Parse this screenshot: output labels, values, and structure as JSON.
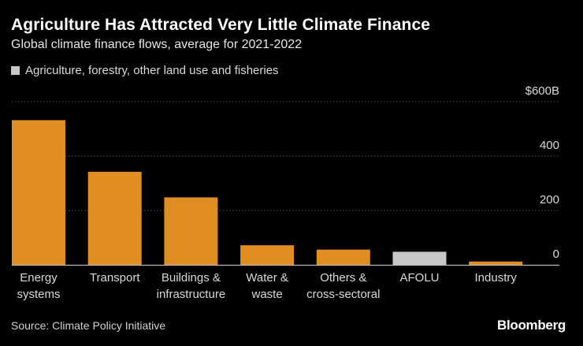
{
  "header": {
    "title": "Agriculture Has Attracted Very Little Climate Finance",
    "subtitle": "Global climate finance flows, average for 2021-2022"
  },
  "legend": {
    "label": "Agriculture, forestry, other land use and fisheries",
    "color": "#c8c8c8"
  },
  "footer": {
    "source": "Source: Climate Policy Initiative",
    "logo": "Bloomberg"
  },
  "colors": {
    "bar": "#e08e22",
    "highlight": "#c8c8c8",
    "grid": "#555555",
    "axis": "#bbbbbb",
    "text": "#d9d9d9"
  },
  "chart_data": {
    "type": "bar",
    "categories": [
      [
        "Energy",
        "systems"
      ],
      [
        "Transport"
      ],
      [
        "Buildings &",
        "infrastructure"
      ],
      [
        "Water &",
        "waste"
      ],
      [
        "Others &",
        "cross-sectoral"
      ],
      [
        "AFOLU"
      ],
      [
        "Industry"
      ]
    ],
    "values": [
      532,
      342,
      248,
      72,
      56,
      48,
      12
    ],
    "highlight_index": 5,
    "ylim": [
      0,
      600
    ],
    "yticks": [
      0,
      200,
      400,
      600
    ],
    "ytick_labels": [
      "0",
      "200",
      "400",
      "$600B"
    ],
    "grid": true
  }
}
